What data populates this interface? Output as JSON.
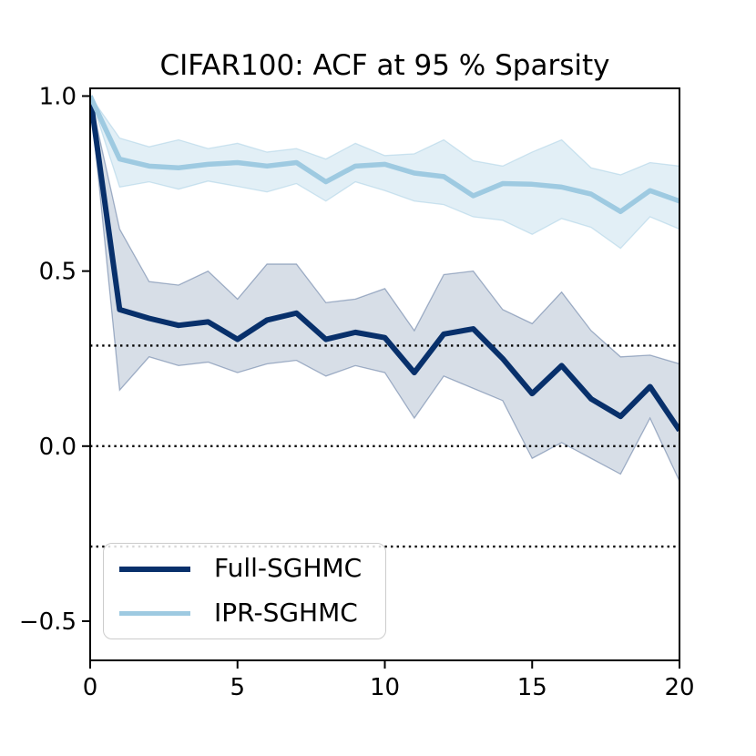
{
  "chart_data": {
    "type": "line",
    "title": "CIFAR100: ACF at 95 % Sparsity",
    "xlabel": "",
    "ylabel": "",
    "xlim": [
      0,
      20
    ],
    "ylim": [
      -0.612,
      1.022
    ],
    "xticks": [
      0,
      5,
      10,
      15,
      20
    ],
    "xtick_labels": [
      "0",
      "5",
      "10",
      "15",
      "20"
    ],
    "yticks": [
      1.0,
      0.5,
      0.0,
      -0.5
    ],
    "ytick_labels": [
      "1.0",
      "0.5",
      "0.0",
      "−0.5"
    ],
    "hlines_dotted": [
      0.287,
      0.0,
      -0.287
    ],
    "grid": false,
    "legend_position": "lower left",
    "x": [
      0,
      1,
      2,
      3,
      4,
      5,
      6,
      7,
      8,
      9,
      10,
      11,
      12,
      13,
      14,
      15,
      16,
      17,
      18,
      19,
      20
    ],
    "series": [
      {
        "name": "Full-SGHMC",
        "color": "#08306b",
        "line_width": 6,
        "band_alpha": 0.16,
        "values": [
          1.0,
          0.39,
          0.365,
          0.345,
          0.355,
          0.305,
          0.36,
          0.38,
          0.305,
          0.325,
          0.31,
          0.21,
          0.32,
          0.335,
          0.25,
          0.15,
          0.23,
          0.135,
          0.085,
          0.17,
          0.045
        ],
        "band_upper": [
          1.0,
          0.62,
          0.47,
          0.46,
          0.5,
          0.42,
          0.52,
          0.52,
          0.41,
          0.42,
          0.45,
          0.33,
          0.49,
          0.5,
          0.39,
          0.35,
          0.44,
          0.33,
          0.255,
          0.26,
          0.235
        ],
        "band_lower": [
          1.0,
          0.16,
          0.255,
          0.23,
          0.24,
          0.21,
          0.235,
          0.245,
          0.2,
          0.23,
          0.21,
          0.08,
          0.2,
          0.165,
          0.13,
          -0.035,
          0.01,
          -0.035,
          -0.08,
          0.08,
          -0.1
        ]
      },
      {
        "name": "IPR-SGHMC",
        "color": "#9ecae1",
        "line_width": 5.5,
        "band_alpha": 0.3,
        "values": [
          1.0,
          0.82,
          0.8,
          0.795,
          0.805,
          0.81,
          0.8,
          0.81,
          0.755,
          0.8,
          0.805,
          0.78,
          0.77,
          0.715,
          0.75,
          0.748,
          0.74,
          0.72,
          0.67,
          0.73,
          0.7
        ],
        "band_upper": [
          1.0,
          0.88,
          0.855,
          0.875,
          0.85,
          0.865,
          0.84,
          0.85,
          0.82,
          0.865,
          0.83,
          0.835,
          0.875,
          0.815,
          0.8,
          0.84,
          0.875,
          0.795,
          0.775,
          0.81,
          0.8
        ],
        "band_lower": [
          1.0,
          0.74,
          0.755,
          0.734,
          0.757,
          0.742,
          0.726,
          0.75,
          0.7,
          0.755,
          0.73,
          0.7,
          0.69,
          0.655,
          0.645,
          0.605,
          0.65,
          0.625,
          0.565,
          0.655,
          0.62
        ]
      }
    ]
  }
}
